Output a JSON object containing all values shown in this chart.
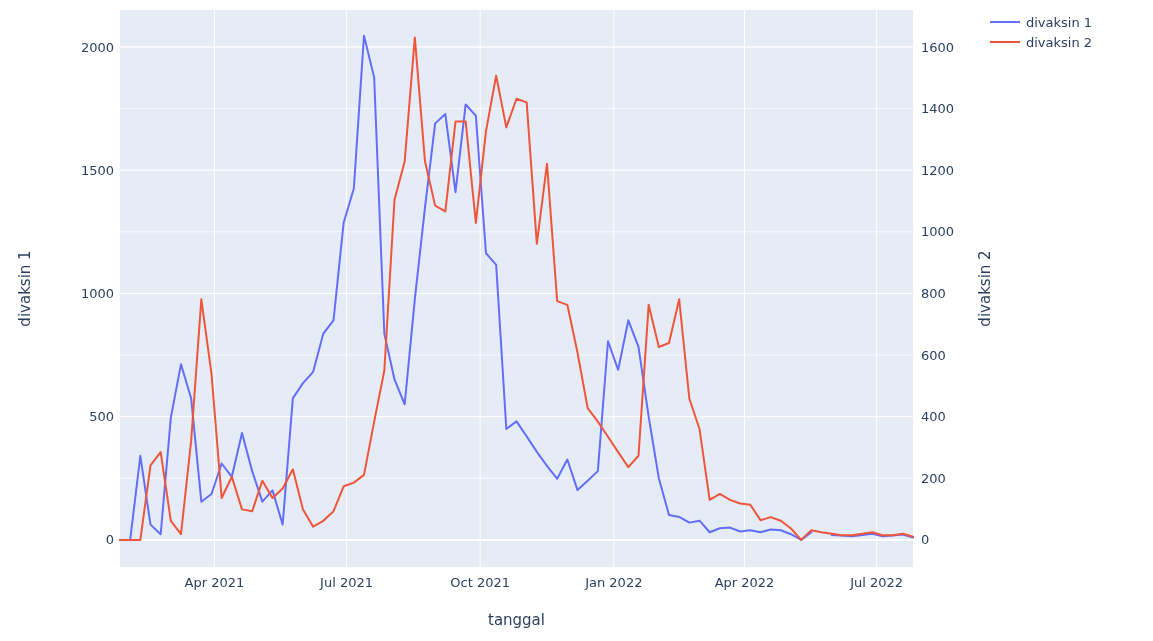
{
  "chart_data": {
    "type": "line",
    "xlabel": "tanggal",
    "ylabel": "divaksin 1",
    "y2label": "divaksin 2",
    "x": [
      "2021-01-26",
      "2021-02-02",
      "2021-02-09",
      "2021-02-16",
      "2021-02-23",
      "2021-03-02",
      "2021-03-09",
      "2021-03-16",
      "2021-03-23",
      "2021-03-30",
      "2021-04-06",
      "2021-04-13",
      "2021-04-20",
      "2021-04-27",
      "2021-05-04",
      "2021-05-11",
      "2021-05-18",
      "2021-05-25",
      "2021-06-01",
      "2021-06-08",
      "2021-06-15",
      "2021-06-22",
      "2021-06-29",
      "2021-07-06",
      "2021-07-13",
      "2021-07-20",
      "2021-07-27",
      "2021-08-03",
      "2021-08-10",
      "2021-08-17",
      "2021-08-24",
      "2021-08-31",
      "2021-09-07",
      "2021-09-14",
      "2021-09-21",
      "2021-09-28",
      "2021-10-05",
      "2021-10-12",
      "2021-10-19",
      "2021-10-26",
      "2021-11-02",
      "2021-11-09",
      "2021-11-16",
      "2021-11-23",
      "2021-11-30",
      "2021-12-07",
      "2021-12-14",
      "2021-12-21",
      "2021-12-28",
      "2022-01-04",
      "2022-01-11",
      "2022-01-18",
      "2022-01-25",
      "2022-02-01",
      "2022-02-08",
      "2022-02-15",
      "2022-02-22",
      "2022-03-01",
      "2022-03-08",
      "2022-03-15",
      "2022-03-22",
      "2022-03-29",
      "2022-04-05",
      "2022-04-12",
      "2022-04-19",
      "2022-04-26",
      "2022-05-03",
      "2022-05-10",
      "2022-05-17",
      "2022-05-24",
      "2022-05-31",
      "2022-06-07",
      "2022-06-14",
      "2022-06-21",
      "2022-06-28",
      "2022-07-05",
      "2022-07-12",
      "2022-07-19",
      "2022-07-26"
    ],
    "series": [
      {
        "name": "divaksin 1",
        "color": "#636efa",
        "values": [
          0,
          0,
          341,
          62,
          23,
          496,
          713,
          574,
          155,
          186,
          310,
          256,
          434,
          279,
          155,
          201,
          62,
          574,
          636,
          682,
          837,
          891,
          1287,
          1426,
          2046,
          1876,
          837,
          651,
          550,
          977,
          1349,
          1690,
          1728,
          1411,
          1767,
          1721,
          1163,
          1116,
          450,
          481,
          420,
          357,
          300,
          248,
          326,
          202,
          240,
          279,
          806,
          690,
          891,
          783,
          500,
          250,
          101,
          93,
          70,
          78,
          31,
          47,
          50,
          34,
          39,
          31,
          42,
          39,
          23,
          0,
          31,
          null,
          20,
          18,
          15,
          20,
          25,
          15,
          18,
          22,
          10
        ]
      },
      {
        "name": "divaksin 2",
        "color": "#ef553b",
        "axis": "y2",
        "values": [
          0,
          0,
          0,
          242,
          285,
          62,
          19,
          322,
          781,
          539,
          136,
          205,
          99,
          93,
          192,
          136,
          167,
          229,
          99,
          43,
          62,
          93,
          174,
          186,
          211,
          384,
          550,
          1104,
          1228,
          1631,
          1228,
          1085,
          1066,
          1358,
          1358,
          1029,
          1327,
          1507,
          1339,
          1432,
          1420,
          961,
          1221,
          775,
          763,
          608,
          428,
          384,
          335,
          285,
          236,
          273,
          763,
          626,
          639,
          781,
          459,
          360,
          130,
          149,
          130,
          118,
          114,
          64,
          74,
          62,
          37,
          0,
          31,
          25,
          20,
          15,
          15,
          20,
          25,
          15,
          15,
          20,
          10
        ]
      }
    ],
    "xlim": [
      "2021-01-26",
      "2022-07-26"
    ],
    "xticks": [
      {
        "value": "2021-04-01",
        "label": "Apr 2021"
      },
      {
        "value": "2021-07-01",
        "label": "Jul 2021"
      },
      {
        "value": "2021-10-01",
        "label": "Oct 2021"
      },
      {
        "value": "2022-01-01",
        "label": "Jan 2022"
      },
      {
        "value": "2022-04-01",
        "label": "Apr 2022"
      },
      {
        "value": "2022-07-01",
        "label": "Jul 2022"
      }
    ],
    "ylim": [
      -110,
      2150
    ],
    "yticks": [
      0,
      500,
      1000,
      1500,
      2000
    ],
    "y2lim": [
      -88,
      1720
    ],
    "y2ticks": [
      0,
      200,
      400,
      600,
      800,
      1000,
      1200,
      1400,
      1600
    ],
    "grid": true,
    "legend": "top right"
  }
}
